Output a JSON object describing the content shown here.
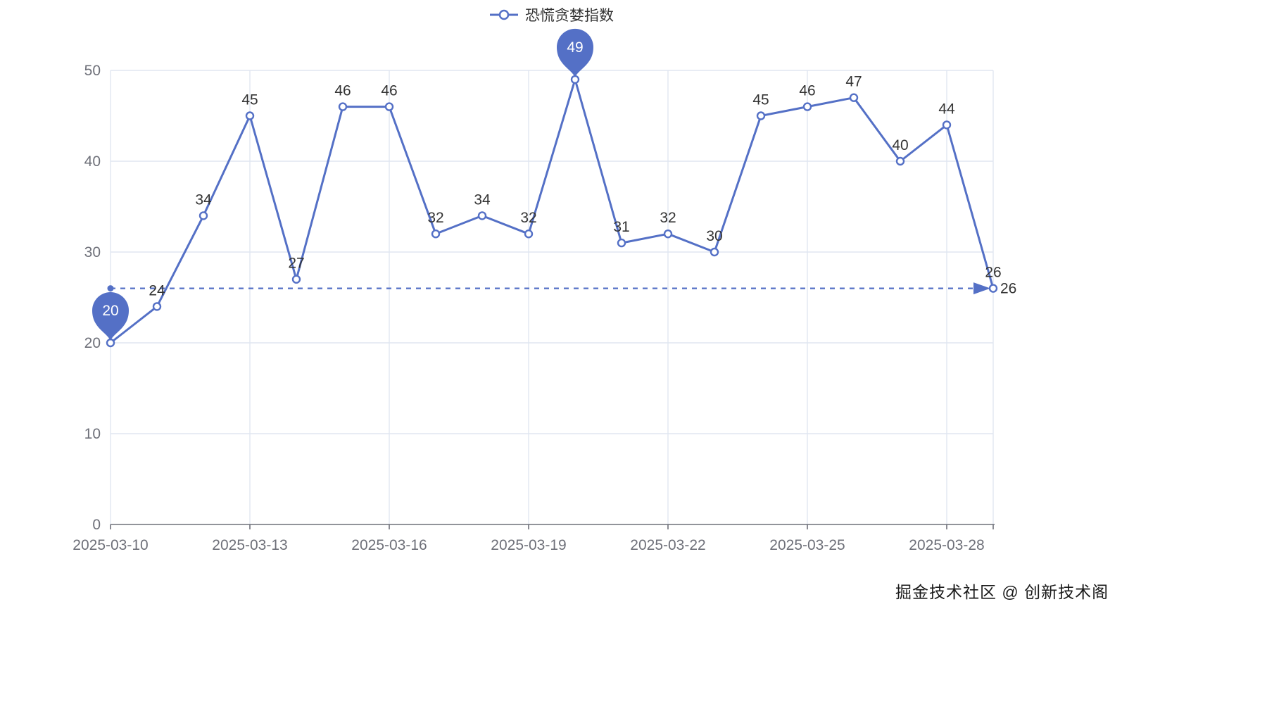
{
  "legend": {
    "label": "恐慌贪婪指数"
  },
  "watermark": "掘金技术社区 @ 创新技术阁",
  "chart_data": {
    "type": "line",
    "title": "恐慌贪婪指数",
    "x": [
      "2025-03-10",
      "2025-03-11",
      "2025-03-12",
      "2025-03-13",
      "2025-03-14",
      "2025-03-15",
      "2025-03-16",
      "2025-03-17",
      "2025-03-18",
      "2025-03-19",
      "2025-03-20",
      "2025-03-21",
      "2025-03-22",
      "2025-03-23",
      "2025-03-24",
      "2025-03-25",
      "2025-03-26",
      "2025-03-27",
      "2025-03-28",
      "2025-03-29"
    ],
    "values": [
      20,
      24,
      34,
      45,
      27,
      46,
      46,
      32,
      34,
      32,
      49,
      31,
      32,
      30,
      45,
      46,
      47,
      40,
      44,
      26
    ],
    "x_tick_labels": [
      "2025-03-10",
      "2025-03-13",
      "2025-03-16",
      "2025-03-19",
      "2025-03-22",
      "2025-03-25",
      "2025-03-28"
    ],
    "x_tick_indices": [
      0,
      3,
      6,
      9,
      12,
      15,
      18
    ],
    "y_ticks": [
      0,
      10,
      20,
      30,
      40,
      50
    ],
    "ylim": [
      0,
      50
    ],
    "grid": true,
    "legend_position": "top-center",
    "min_marker": {
      "index": 0,
      "value": 20,
      "label": "20"
    },
    "max_marker": {
      "index": 10,
      "value": 49,
      "label": "49"
    },
    "markline": {
      "value": 26,
      "label": "26"
    },
    "colors": {
      "line": "#5470c6",
      "marker_fill": "#ffffff",
      "pin": "#5470c6",
      "pin_text": "#ffffff",
      "data_label": "#333333",
      "grid_line": "#e0e6f1",
      "axis_line": "#6e7079",
      "axis_label": "#6e7079"
    }
  }
}
